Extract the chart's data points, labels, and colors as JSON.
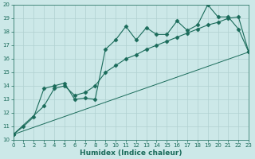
{
  "xlabel": "Humidex (Indice chaleur)",
  "bg_color": "#cce8e8",
  "grid_color": "#b0d0d0",
  "line_color": "#1a6b5a",
  "xlim": [
    0,
    23
  ],
  "ylim": [
    10,
    20
  ],
  "xticks": [
    0,
    1,
    2,
    3,
    4,
    5,
    6,
    7,
    8,
    9,
    10,
    11,
    12,
    13,
    14,
    15,
    16,
    17,
    18,
    19,
    20,
    21,
    22,
    23
  ],
  "yticks": [
    10,
    11,
    12,
    13,
    14,
    15,
    16,
    17,
    18,
    19,
    20
  ],
  "series": [
    {
      "x": [
        0,
        1,
        2,
        3,
        4,
        5,
        6,
        7,
        8,
        9,
        10,
        11,
        12,
        13,
        14,
        15,
        16,
        17,
        18,
        19,
        20,
        21,
        22,
        23
      ],
      "y": [
        10.4,
        11.0,
        11.7,
        13.8,
        14.0,
        14.2,
        13.0,
        13.1,
        13.0,
        16.7,
        17.4,
        18.4,
        17.4,
        18.3,
        17.8,
        17.8,
        18.8,
        18.1,
        18.5,
        20.0,
        19.1,
        19.1,
        18.2,
        16.5
      ],
      "markers": true,
      "linewidth": 0.8,
      "markersize": 2.5
    },
    {
      "x": [
        0,
        3,
        4,
        5,
        6,
        7,
        8,
        9,
        10,
        11,
        12,
        13,
        14,
        15,
        16,
        17,
        18,
        19,
        20,
        21,
        22,
        23
      ],
      "y": [
        10.4,
        12.5,
        13.8,
        14.0,
        13.3,
        13.5,
        14.0,
        15.0,
        15.5,
        16.0,
        16.3,
        16.7,
        17.0,
        17.3,
        17.6,
        17.9,
        18.2,
        18.5,
        18.7,
        19.0,
        19.1,
        16.5
      ],
      "markers": true,
      "linewidth": 0.8,
      "markersize": 2.5
    },
    {
      "x": [
        0,
        23
      ],
      "y": [
        10.4,
        16.5
      ],
      "markers": false,
      "linewidth": 0.7,
      "markersize": 0
    }
  ]
}
